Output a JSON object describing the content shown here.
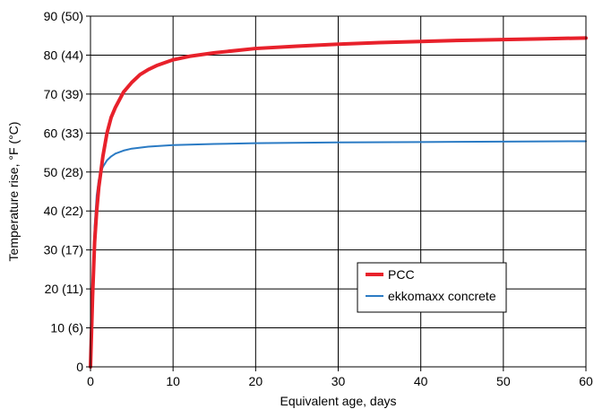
{
  "chart_data": {
    "type": "line",
    "xlabel": "Equivalent age, days",
    "ylabel": "Temperature rise, °F (°C)",
    "xlim": [
      0,
      60
    ],
    "ylim": [
      0,
      90
    ],
    "x_ticks": [
      "0",
      "10",
      "20",
      "30",
      "40",
      "50",
      "60"
    ],
    "y_ticks": [
      "0",
      "10 (6)",
      "20 (11)",
      "30 (17)",
      "40 (22)",
      "50 (28)",
      "60 (33)",
      "70 (39)",
      "80 (44)",
      "90 (50)"
    ],
    "grid": true,
    "legend_position": "lower-right",
    "series": [
      {
        "name": "PCC",
        "color": "#e8212b",
        "x": [
          0,
          0.25,
          0.5,
          0.75,
          1,
          1.5,
          2,
          2.5,
          3,
          4,
          5,
          6,
          7,
          8,
          10,
          12,
          15,
          20,
          25,
          30,
          35,
          40,
          45,
          50,
          55,
          60
        ],
        "y": [
          0,
          18,
          32,
          40,
          46,
          54,
          60,
          64,
          66.5,
          70.5,
          73,
          75,
          76.3,
          77.3,
          78.8,
          79.7,
          80.6,
          81.7,
          82.3,
          82.8,
          83.2,
          83.5,
          83.8,
          84,
          84.2,
          84.4
        ]
      },
      {
        "name": "ekkomaxx concrete",
        "color": "#2b7bc4",
        "x": [
          0,
          0.25,
          0.5,
          0.75,
          1,
          1.25,
          1.5,
          2,
          2.5,
          3,
          4,
          5,
          7,
          10,
          15,
          20,
          30,
          40,
          50,
          60
        ],
        "y": [
          0,
          20,
          36,
          44,
          48,
          50,
          51.3,
          53,
          54,
          54.7,
          55.5,
          56,
          56.5,
          56.9,
          57.2,
          57.4,
          57.6,
          57.7,
          57.8,
          57.9
        ]
      }
    ]
  }
}
